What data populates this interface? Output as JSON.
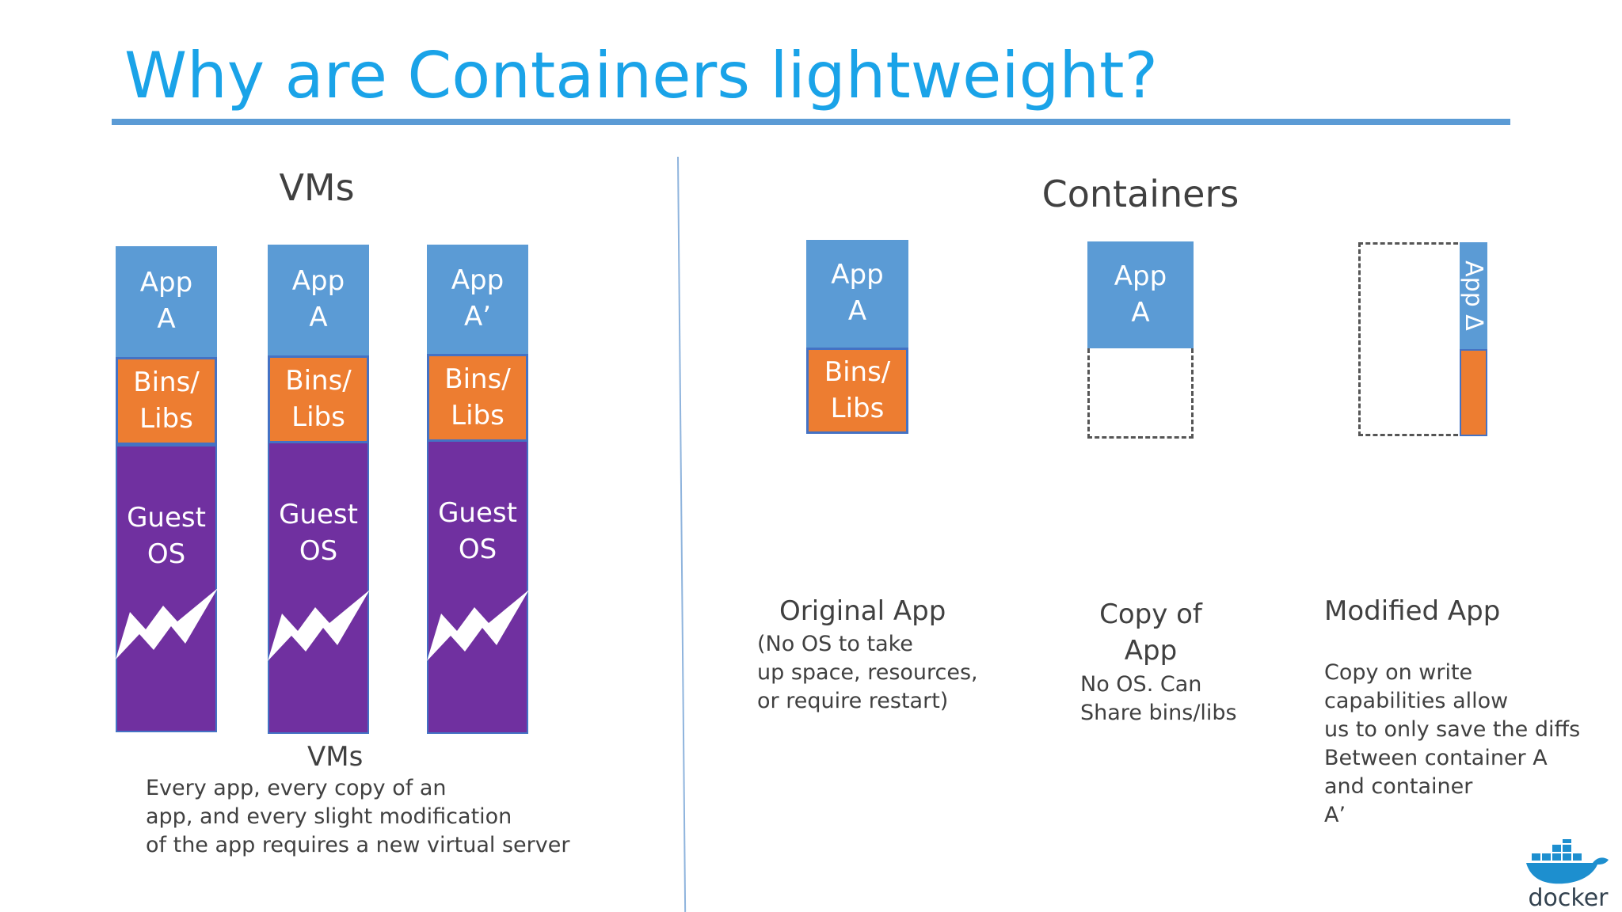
{
  "title": "Why are Containers lightweight?",
  "vms": {
    "heading": "VMs",
    "stacks": [
      {
        "app": "App\nA",
        "bins": "Bins/\nLibs",
        "os": "Guest\nOS"
      },
      {
        "app": "App\nA",
        "bins": "Bins/\nLibs",
        "os": "Guest\nOS"
      },
      {
        "app": "App\nA’",
        "bins": "Bins/\nLibs",
        "os": "Guest\nOS"
      }
    ],
    "caption_title": "VMs",
    "caption": "Every app, every copy of an\napp, and every slight modification\nof the app requires a new virtual server"
  },
  "containers": {
    "heading": "Containers",
    "original": {
      "app": "App\nA",
      "bins": "Bins/\nLibs",
      "label": "Original App",
      "caption": "(No OS to take\nup space, resources,\nor require restart)"
    },
    "copy": {
      "app": "App\nA",
      "label": "Copy of\nApp",
      "caption": "No OS. Can\nShare bins/libs"
    },
    "modified": {
      "app": "App Δ",
      "label": "Modified App",
      "caption": "Copy on write\ncapabilities allow\nus to only save the diffs\nBetween container A\nand container\nA’"
    }
  },
  "logo": {
    "text": "docker",
    "icon": "docker-whale-icon"
  },
  "colors": {
    "title": "#1aa3e8",
    "app": "#5b9bd5",
    "bins": "#ed7d31",
    "guest_os": "#7030a0",
    "rule": "#5b9bd5"
  }
}
